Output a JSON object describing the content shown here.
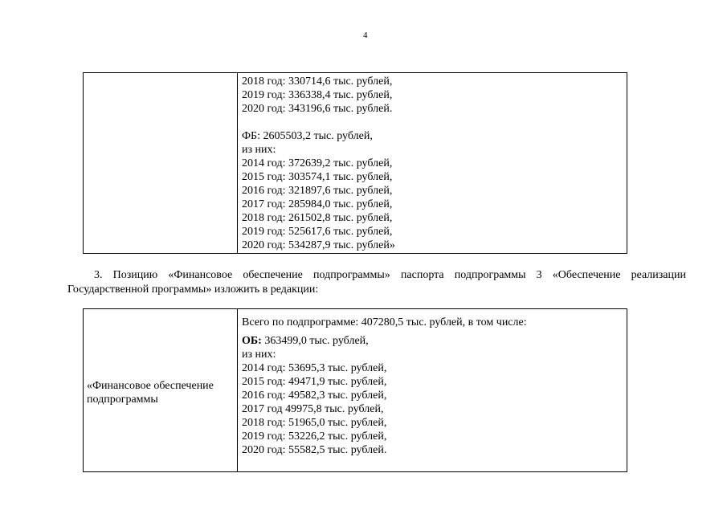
{
  "page_number": "4",
  "table1": {
    "lines_a": [
      "2018 год: 330714,6 тыс. рублей,",
      "2019 год: 336338,4 тыс. рублей,",
      "2020 год: 343196,6 тыс. рублей."
    ],
    "fb_header": "ФБ: 2605503,2 тыс. рублей,",
    "fb_sub": "из них:",
    "lines_b": [
      "2014 год: 372639,2 тыс. рублей,",
      "2015 год: 303574,1 тыс. рублей,",
      "2016 год: 321897,6 тыс. рублей,",
      "2017 год: 285984,0 тыс. рублей,",
      "2018 год: 261502,8 тыс. рублей,",
      "2019 год: 525617,6 тыс. рублей,",
      "2020 год: 534287,9 тыс. рублей»"
    ]
  },
  "paragraph": "3. Позицию «Финансовое обеспечение подпрограммы» паспорта подпрограммы 3 «Обеспечение реализации Государственной программы» изложить в редакции:",
  "table2": {
    "label_line1": "«Финансовое обеспечение",
    "label_line2": "подпрограммы",
    "total": "Всего по подпрограмме: 407280,5 тыс. рублей, в том числе:",
    "ob_bold": "ОБ:",
    "ob_value": " 363499,0 тыс. рублей,",
    "ob_sub": "из них:",
    "lines": [
      "2014 год: 53695,3 тыс. рублей,",
      "2015 год: 49471,9 тыс. рублей,",
      "2016 год: 49582,3 тыс. рублей,",
      "2017 год 49975,8 тыс. рублей,",
      "2018 год: 51965,0 тыс. рублей,",
      "2019 год: 53226,2 тыс. рублей,",
      "2020 год: 55582,5 тыс. рублей."
    ]
  }
}
